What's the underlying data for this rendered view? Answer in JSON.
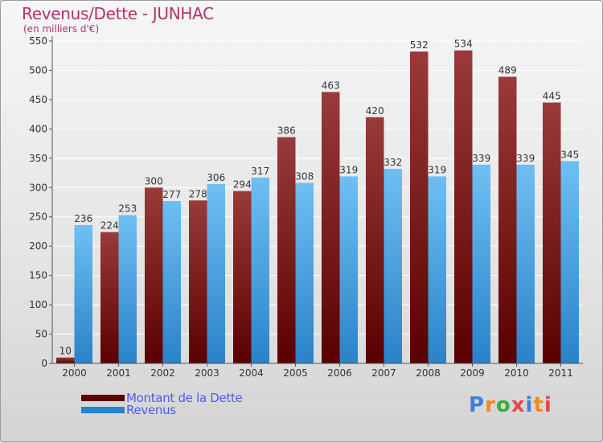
{
  "title": "Revenus/Dette - JUNHAC",
  "subtitle": "(en milliers d'€)",
  "logo": {
    "text": "Proxiti",
    "letter_colors": [
      "#3c7fd6",
      "#f08a1c",
      "#3cae3c",
      "#e34a4a",
      "#3c7fd6",
      "#f08a1c",
      "#e34a4a"
    ]
  },
  "colors": {
    "dette_top": "#9a3a3a",
    "dette_bottom": "#5a0000",
    "revenus_top": "#6fbff2",
    "revenus_bottom": "#2a82c8",
    "grid": "#ffffff",
    "axis_text": "#333333"
  },
  "chart_data": {
    "type": "bar",
    "title": "Revenus/Dette - JUNHAC",
    "subtitle": "(en milliers d'€)",
    "categories": [
      "2000",
      "2001",
      "2002",
      "2003",
      "2004",
      "2005",
      "2006",
      "2007",
      "2008",
      "2009",
      "2010",
      "2011"
    ],
    "series": [
      {
        "name": "Montant de la Dette",
        "values": [
          10,
          224,
          300,
          278,
          294,
          386,
          463,
          420,
          532,
          534,
          489,
          445
        ]
      },
      {
        "name": "Revenus",
        "values": [
          236,
          253,
          277,
          306,
          317,
          308,
          319,
          332,
          319,
          339,
          339,
          345
        ]
      }
    ],
    "yticks": [
      0,
      50,
      100,
      150,
      200,
      250,
      300,
      350,
      400,
      450,
      500,
      550
    ],
    "ylim": [
      0,
      550
    ],
    "grid": true,
    "legend_position": "bottom-left"
  }
}
